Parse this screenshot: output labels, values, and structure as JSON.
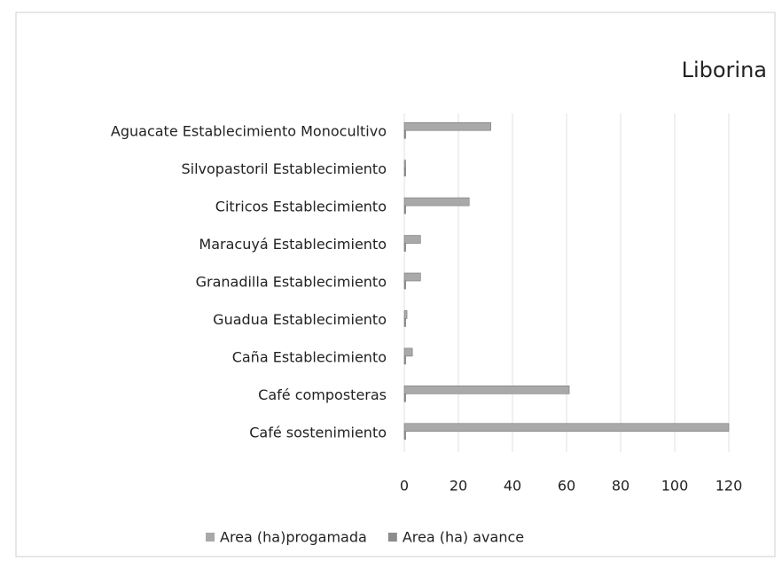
{
  "chart_data": {
    "type": "hbar",
    "title": "Liborina",
    "categories": [
      "Aguacate Establecimiento Monocultivo",
      "Silvopastoril Establecimiento",
      "Citricos Establecimiento",
      "Maracuyá Establecimiento",
      "Granadilla Establecimiento",
      "Guadua Establecimiento",
      "Caña Establecimiento",
      "Café composteras",
      "Café sostenimiento"
    ],
    "series": [
      {
        "name": "Area (ha)progamada",
        "color": "#a9a9a9",
        "values": [
          32,
          0.5,
          24,
          6,
          6,
          1,
          3,
          61,
          120
        ]
      },
      {
        "name": "Area (ha) avance",
        "color": "#8c8c8c",
        "values": [
          0.5,
          0.5,
          0.5,
          0.5,
          0.5,
          0.5,
          0.5,
          0.5,
          0.5
        ]
      }
    ],
    "xlim": [
      0,
      120
    ],
    "xticks": [
      0,
      20,
      40,
      60,
      80,
      100,
      120
    ],
    "grid": true
  }
}
